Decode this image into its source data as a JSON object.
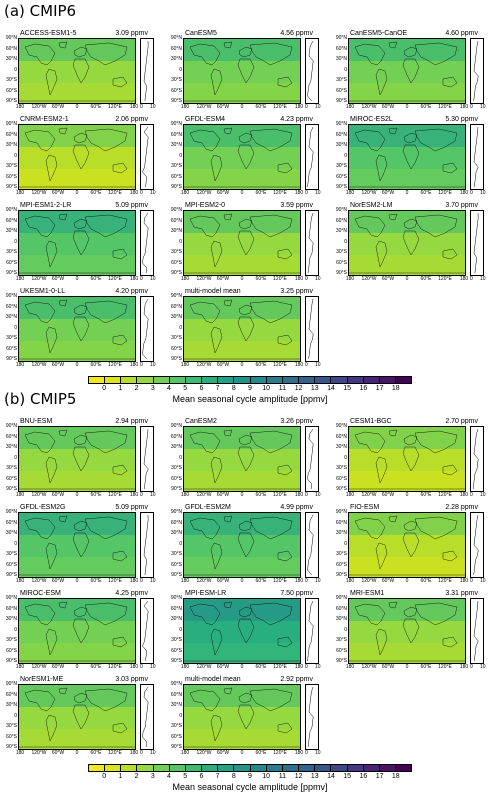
{
  "sections": [
    {
      "title": "(a) CMIP6",
      "panels": [
        {
          "name": "ACCESS-ESM1-5",
          "value": "3.09 ppmv",
          "shade": 3
        },
        {
          "name": "CanESM5",
          "value": "4.56 ppmv",
          "shade": 4
        },
        {
          "name": "CanESM5-CanOE",
          "value": "4.60 ppmv",
          "shade": 4
        },
        {
          "name": "CNRM-ESM2-1",
          "value": "2.06 ppmv",
          "shade": 2
        },
        {
          "name": "GFDL-ESM4",
          "value": "4.23 ppmv",
          "shade": 4
        },
        {
          "name": "MIROC-ES2L",
          "value": "5.30 ppmv",
          "shade": 5
        },
        {
          "name": "MPI-ESM1-2-LR",
          "value": "5.09 ppmv",
          "shade": 5
        },
        {
          "name": "MPI-ESM2-0",
          "value": "3.59 ppmv",
          "shade": 3
        },
        {
          "name": "NorESM2-LM",
          "value": "3.70 ppmv",
          "shade": 3
        },
        {
          "name": "UKESM1-0-LL",
          "value": "4.20 ppmv",
          "shade": 4
        },
        {
          "name": "multi-model mean",
          "value": "3.25 ppmv",
          "shade": 3
        }
      ]
    },
    {
      "title": "(b) CMIP5",
      "panels": [
        {
          "name": "BNU-ESM",
          "value": "2.94 ppmv",
          "shade": 3
        },
        {
          "name": "CanESM2",
          "value": "3.26 ppmv",
          "shade": 3
        },
        {
          "name": "CESM1-BGC",
          "value": "2.70 ppmv",
          "shade": 2
        },
        {
          "name": "GFDL-ESM2G",
          "value": "5.09 ppmv",
          "shade": 5
        },
        {
          "name": "GFDL-ESM2M",
          "value": "4.99 ppmv",
          "shade": 5
        },
        {
          "name": "FIO-ESM",
          "value": "2.28 ppmv",
          "shade": 2
        },
        {
          "name": "MIROC-ESM",
          "value": "4.25 ppmv",
          "shade": 4
        },
        {
          "name": "MPI-ESM-LR",
          "value": "7.50 ppmv",
          "shade": 7
        },
        {
          "name": "MRI-ESM1",
          "value": "3.31 ppmv",
          "shade": 3
        },
        {
          "name": "NorESM1-ME",
          "value": "3.03 ppmv",
          "shade": 3
        },
        {
          "name": "multi-model mean",
          "value": "2.92 ppmv",
          "shade": 3
        }
      ]
    }
  ],
  "lat_labels": [
    "90°N",
    "60°N",
    "30°N",
    "0",
    "30°S",
    "60°S",
    "90°S"
  ],
  "lon_labels": [
    "180",
    "120°W",
    "60°W",
    "0",
    "60°E",
    "120°E",
    "180"
  ],
  "profile_ticks": [
    "0",
    "10"
  ],
  "colorbar": {
    "ticks": [
      "0",
      "1",
      "2",
      "3",
      "4",
      "5",
      "6",
      "7",
      "8",
      "9",
      "10",
      "11",
      "12",
      "13",
      "14",
      "15",
      "16",
      "17",
      "18"
    ],
    "label": "Mean seasonal cycle amplitude [ppmv]",
    "colors": [
      "#f5e51b",
      "#dce319",
      "#b8de29",
      "#95d840",
      "#73d055",
      "#55c667",
      "#3cbb75",
      "#29af7f",
      "#20a386",
      "#1f968b",
      "#238a8d",
      "#287d8e",
      "#2d708e",
      "#33638d",
      "#39568c",
      "#404688",
      "#453781",
      "#482677",
      "#481467",
      "#440154"
    ]
  }
}
